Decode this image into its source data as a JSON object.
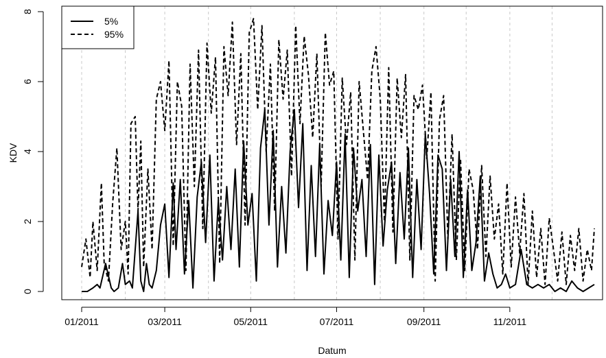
{
  "chart_data": {
    "type": "line",
    "xlabel": "Datum",
    "ylabel": "KDV",
    "xlim": [
      "2011-01-01",
      "2011-12-31"
    ],
    "ylim": [
      0,
      8
    ],
    "y_ticks": [
      0,
      2,
      4,
      6,
      8
    ],
    "x_ticks": [
      {
        "date": "2011-01-01",
        "label": "01/2011"
      },
      {
        "date": "2011-03-01",
        "label": "03/2011"
      },
      {
        "date": "2011-05-01",
        "label": "05/2011"
      },
      {
        "date": "2011-07-01",
        "label": "07/2011"
      },
      {
        "date": "2011-09-01",
        "label": "09/2011"
      },
      {
        "date": "2011-11-01",
        "label": "11/2011"
      }
    ],
    "grid_dates": [
      "2011-01-01",
      "2011-02-01",
      "2011-03-01",
      "2011-04-01",
      "2011-05-01",
      "2011-06-01",
      "2011-07-01",
      "2011-08-01",
      "2011-09-01",
      "2011-10-01",
      "2011-11-01",
      "2011-12-01"
    ],
    "grid": "vertical-dashed",
    "legend_position": "top-left",
    "series": [
      {
        "name": "5%",
        "style": "solid",
        "color": "#000000",
        "x": [
          "2011-01-01",
          "2011-01-05",
          "2011-01-09",
          "2011-01-12",
          "2011-01-14",
          "2011-01-18",
          "2011-01-22",
          "2011-01-24",
          "2011-01-27",
          "2011-01-30",
          "2011-02-01",
          "2011-02-04",
          "2011-02-06",
          "2011-02-08",
          "2011-02-10",
          "2011-02-12",
          "2011-02-14",
          "2011-02-16",
          "2011-02-18",
          "2011-02-20",
          "2011-02-23",
          "2011-02-26",
          "2011-03-01",
          "2011-03-04",
          "2011-03-07",
          "2011-03-09",
          "2011-03-12",
          "2011-03-15",
          "2011-03-18",
          "2011-03-21",
          "2011-03-24",
          "2011-03-27",
          "2011-03-30",
          "2011-04-02",
          "2011-04-05",
          "2011-04-08",
          "2011-04-11",
          "2011-04-14",
          "2011-04-17",
          "2011-04-20",
          "2011-04-23",
          "2011-04-26",
          "2011-04-29",
          "2011-05-02",
          "2011-05-05",
          "2011-05-08",
          "2011-05-11",
          "2011-05-14",
          "2011-05-17",
          "2011-05-20",
          "2011-05-23",
          "2011-05-26",
          "2011-05-29",
          "2011-06-01",
          "2011-06-04",
          "2011-06-07",
          "2011-06-10",
          "2011-06-13",
          "2011-06-16",
          "2011-06-19",
          "2011-06-22",
          "2011-06-25",
          "2011-06-28",
          "2011-07-01",
          "2011-07-04",
          "2011-07-07",
          "2011-07-10",
          "2011-07-13",
          "2011-07-16",
          "2011-07-19",
          "2011-07-22",
          "2011-07-25",
          "2011-07-28",
          "2011-07-31",
          "2011-08-03",
          "2011-08-06",
          "2011-08-09",
          "2011-08-12",
          "2011-08-15",
          "2011-08-18",
          "2011-08-21",
          "2011-08-24",
          "2011-08-27",
          "2011-08-30",
          "2011-09-02",
          "2011-09-05",
          "2011-09-08",
          "2011-09-11",
          "2011-09-14",
          "2011-09-17",
          "2011-09-20",
          "2011-09-23",
          "2011-09-26",
          "2011-09-29",
          "2011-10-02",
          "2011-10-05",
          "2011-10-08",
          "2011-10-11",
          "2011-10-14",
          "2011-10-17",
          "2011-10-20",
          "2011-10-23",
          "2011-10-26",
          "2011-10-29",
          "2011-11-01",
          "2011-11-05",
          "2011-11-09",
          "2011-11-13",
          "2011-11-17",
          "2011-11-21",
          "2011-11-25",
          "2011-11-29",
          "2011-12-03",
          "2011-12-07",
          "2011-12-11",
          "2011-12-15",
          "2011-12-19",
          "2011-12-23",
          "2011-12-27",
          "2011-12-31"
        ],
        "y": [
          0.0,
          0.0,
          0.1,
          0.2,
          0.1,
          0.8,
          0.1,
          0.0,
          0.1,
          0.8,
          0.2,
          0.3,
          0.1,
          1.2,
          2.3,
          0.3,
          0.0,
          0.8,
          0.2,
          0.1,
          0.6,
          1.9,
          2.5,
          0.4,
          3.1,
          1.2,
          3.2,
          0.5,
          2.6,
          0.1,
          2.7,
          3.7,
          1.4,
          3.9,
          0.3,
          2.6,
          0.9,
          3.0,
          1.2,
          3.5,
          0.7,
          4.3,
          1.9,
          2.8,
          0.3,
          4.1,
          5.2,
          1.9,
          4.6,
          0.7,
          3.0,
          1.1,
          4.0,
          5.2,
          2.4,
          4.8,
          0.6,
          3.6,
          1.0,
          4.2,
          0.5,
          2.6,
          1.6,
          3.7,
          0.9,
          4.5,
          0.4,
          4.1,
          2.3,
          3.2,
          1.0,
          4.2,
          0.2,
          3.9,
          1.3,
          2.9,
          3.7,
          0.8,
          3.4,
          1.5,
          4.1,
          0.4,
          3.2,
          1.2,
          4.5,
          2.8,
          0.5,
          3.9,
          3.5,
          0.6,
          3.2,
          1.0,
          4.0,
          0.4,
          2.9,
          0.6,
          1.4,
          3.3,
          0.3,
          1.1,
          0.5,
          0.1,
          0.2,
          0.5,
          0.1,
          0.2,
          1.2,
          0.2,
          0.1,
          0.2,
          0.1,
          0.2,
          0.0,
          0.1,
          0.0,
          0.3,
          0.1,
          0.0,
          0.1,
          0.2
        ]
      },
      {
        "name": "95%",
        "style": "dashed",
        "color": "#000000",
        "x": [
          "2011-01-01",
          "2011-01-04",
          "2011-01-07",
          "2011-01-09",
          "2011-01-12",
          "2011-01-15",
          "2011-01-17",
          "2011-01-20",
          "2011-01-23",
          "2011-01-26",
          "2011-01-29",
          "2011-02-01",
          "2011-02-03",
          "2011-02-05",
          "2011-02-08",
          "2011-02-10",
          "2011-02-12",
          "2011-02-14",
          "2011-02-17",
          "2011-02-20",
          "2011-02-23",
          "2011-02-26",
          "2011-03-01",
          "2011-03-04",
          "2011-03-07",
          "2011-03-10",
          "2011-03-13",
          "2011-03-16",
          "2011-03-19",
          "2011-03-22",
          "2011-03-25",
          "2011-03-28",
          "2011-03-31",
          "2011-04-03",
          "2011-04-06",
          "2011-04-09",
          "2011-04-12",
          "2011-04-15",
          "2011-04-18",
          "2011-04-21",
          "2011-04-24",
          "2011-04-27",
          "2011-04-30",
          "2011-05-03",
          "2011-05-06",
          "2011-05-09",
          "2011-05-12",
          "2011-05-15",
          "2011-05-18",
          "2011-05-21",
          "2011-05-24",
          "2011-05-27",
          "2011-05-30",
          "2011-06-02",
          "2011-06-05",
          "2011-06-08",
          "2011-06-11",
          "2011-06-14",
          "2011-06-17",
          "2011-06-20",
          "2011-06-23",
          "2011-06-26",
          "2011-06-29",
          "2011-07-02",
          "2011-07-05",
          "2011-07-08",
          "2011-07-11",
          "2011-07-14",
          "2011-07-17",
          "2011-07-20",
          "2011-07-23",
          "2011-07-26",
          "2011-07-29",
          "2011-08-01",
          "2011-08-04",
          "2011-08-07",
          "2011-08-10",
          "2011-08-13",
          "2011-08-16",
          "2011-08-19",
          "2011-08-22",
          "2011-08-25",
          "2011-08-28",
          "2011-08-31",
          "2011-09-03",
          "2011-09-06",
          "2011-09-09",
          "2011-09-12",
          "2011-09-15",
          "2011-09-18",
          "2011-09-21",
          "2011-09-24",
          "2011-09-27",
          "2011-09-30",
          "2011-10-03",
          "2011-10-06",
          "2011-10-09",
          "2011-10-12",
          "2011-10-15",
          "2011-10-18",
          "2011-10-21",
          "2011-10-24",
          "2011-10-27",
          "2011-10-30",
          "2011-11-02",
          "2011-11-05",
          "2011-11-08",
          "2011-11-11",
          "2011-11-14",
          "2011-11-17",
          "2011-11-20",
          "2011-11-23",
          "2011-11-26",
          "2011-11-29",
          "2011-12-02",
          "2011-12-05",
          "2011-12-08",
          "2011-12-11",
          "2011-12-14",
          "2011-12-17",
          "2011-12-20",
          "2011-12-23",
          "2011-12-26",
          "2011-12-29",
          "2011-12-31"
        ],
        "y": [
          0.7,
          1.5,
          0.4,
          2.0,
          0.6,
          3.1,
          0.8,
          0.3,
          2.5,
          4.1,
          1.2,
          2.0,
          0.5,
          4.8,
          5.0,
          2.3,
          4.3,
          0.7,
          3.5,
          1.2,
          5.5,
          6.0,
          4.6,
          6.6,
          1.3,
          6.0,
          5.3,
          0.6,
          6.5,
          3.0,
          6.9,
          1.8,
          7.1,
          5.1,
          6.7,
          0.8,
          7.0,
          5.6,
          7.7,
          4.2,
          6.8,
          1.9,
          7.4,
          7.8,
          5.2,
          7.6,
          4.0,
          6.5,
          2.3,
          7.2,
          5.5,
          6.9,
          3.3,
          7.6,
          4.8,
          7.3,
          6.2,
          4.4,
          6.8,
          3.0,
          7.4,
          5.9,
          6.3,
          1.5,
          6.1,
          4.2,
          5.7,
          0.9,
          6.0,
          4.6,
          3.2,
          6.3,
          7.0,
          5.5,
          2.0,
          6.4,
          1.7,
          6.1,
          4.4,
          6.2,
          0.9,
          5.6,
          5.2,
          5.9,
          3.8,
          5.7,
          0.3,
          4.9,
          5.6,
          1.5,
          4.5,
          0.9,
          3.8,
          0.6,
          3.5,
          2.9,
          1.2,
          3.6,
          1.0,
          3.3,
          1.5,
          2.5,
          0.5,
          3.1,
          0.7,
          2.7,
          1.1,
          2.8,
          0.2,
          2.3,
          0.4,
          1.8,
          0.2,
          2.1,
          1.2,
          0.3,
          1.7,
          0.2,
          1.6,
          0.6,
          1.8,
          0.3,
          1.2,
          0.6,
          1.8
        ]
      }
    ]
  }
}
